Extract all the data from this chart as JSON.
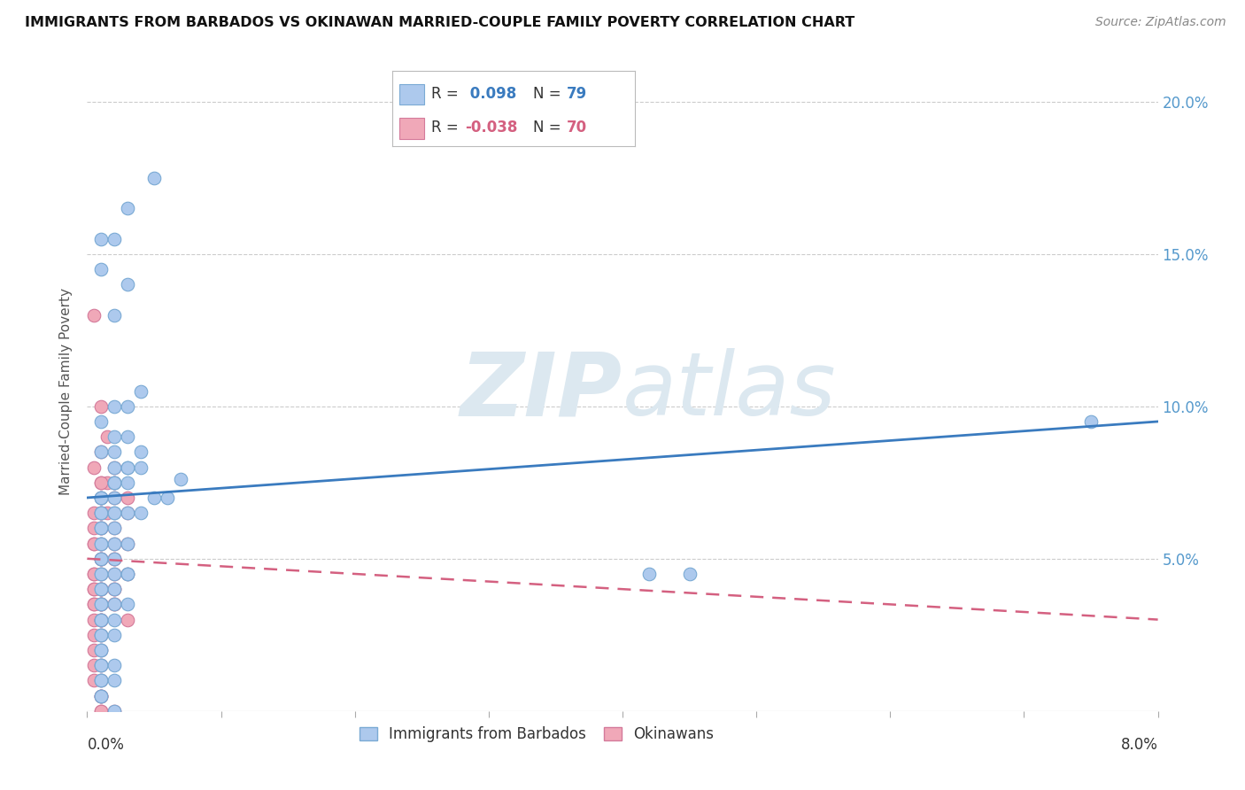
{
  "title": "IMMIGRANTS FROM BARBADOS VS OKINAWAN MARRIED-COUPLE FAMILY POVERTY CORRELATION CHART",
  "source": "Source: ZipAtlas.com",
  "ylabel": "Married-Couple Family Poverty",
  "y_tick_labels": [
    "",
    "5.0%",
    "10.0%",
    "15.0%",
    "20.0%"
  ],
  "y_tick_values": [
    0.0,
    0.05,
    0.1,
    0.15,
    0.2
  ],
  "x_range": [
    0.0,
    0.08
  ],
  "y_range": [
    0.0,
    0.21
  ],
  "series1_label": "Immigrants from Barbados",
  "series2_label": "Okinawans",
  "series1_color": "#adc9ed",
  "series1_edge": "#7aaad4",
  "series2_color": "#f0a8b8",
  "series2_edge": "#d47a9a",
  "trendline1_color": "#3a7bbf",
  "trendline2_color": "#d46080",
  "watermark_zip": "ZIP",
  "watermark_atlas": "atlas",
  "watermark_color": "#dce8f0",
  "background_color": "#ffffff",
  "legend_r1": " 0.098",
  "legend_n1": "79",
  "legend_r2": "-0.038",
  "legend_n2": "70",
  "legend_color1": "#3a7bbf",
  "legend_color2": "#d46080",
  "legend_text_color": "#333333",
  "series1_x": [
    0.005,
    0.003,
    0.001,
    0.002,
    0.001,
    0.003,
    0.002,
    0.004,
    0.002,
    0.001,
    0.002,
    0.003,
    0.001,
    0.002,
    0.003,
    0.002,
    0.003,
    0.002,
    0.001,
    0.002,
    0.001,
    0.002,
    0.001,
    0.003,
    0.002,
    0.001,
    0.002,
    0.003,
    0.001,
    0.002,
    0.001,
    0.002,
    0.001,
    0.003,
    0.002,
    0.001,
    0.002,
    0.001,
    0.003,
    0.002,
    0.001,
    0.002,
    0.001,
    0.001,
    0.002,
    0.001,
    0.002,
    0.001,
    0.001,
    0.002,
    0.001,
    0.001,
    0.001,
    0.002,
    0.001,
    0.001,
    0.001,
    0.001,
    0.001,
    0.001,
    0.001,
    0.001,
    0.001,
    0.001,
    0.001,
    0.002,
    0.002,
    0.003,
    0.004,
    0.003,
    0.004,
    0.005,
    0.006,
    0.004,
    0.003,
    0.045,
    0.042,
    0.007,
    0.075
  ],
  "series1_y": [
    0.175,
    0.165,
    0.155,
    0.155,
    0.145,
    0.14,
    0.13,
    0.105,
    0.1,
    0.095,
    0.09,
    0.09,
    0.085,
    0.085,
    0.08,
    0.075,
    0.08,
    0.075,
    0.07,
    0.07,
    0.065,
    0.065,
    0.06,
    0.065,
    0.06,
    0.055,
    0.055,
    0.055,
    0.05,
    0.05,
    0.045,
    0.045,
    0.04,
    0.045,
    0.04,
    0.035,
    0.035,
    0.03,
    0.035,
    0.03,
    0.025,
    0.025,
    0.02,
    0.015,
    0.015,
    0.01,
    0.01,
    0.005,
    0.005,
    0.0,
    0.07,
    0.07,
    0.065,
    0.065,
    0.06,
    0.055,
    0.05,
    0.045,
    0.04,
    0.035,
    0.03,
    0.025,
    0.02,
    0.015,
    0.01,
    0.08,
    0.075,
    0.1,
    0.085,
    0.075,
    0.08,
    0.07,
    0.07,
    0.065,
    0.045,
    0.045,
    0.045,
    0.076,
    0.095
  ],
  "series2_x": [
    0.0005,
    0.001,
    0.0015,
    0.001,
    0.0005,
    0.001,
    0.0015,
    0.002,
    0.0005,
    0.001,
    0.0015,
    0.001,
    0.0005,
    0.001,
    0.001,
    0.002,
    0.0005,
    0.001,
    0.0005,
    0.001,
    0.0005,
    0.001,
    0.0005,
    0.001,
    0.0005,
    0.001,
    0.0005,
    0.001,
    0.0005,
    0.001,
    0.0005,
    0.001,
    0.001,
    0.001,
    0.001,
    0.001,
    0.002,
    0.001,
    0.002,
    0.001,
    0.002,
    0.001,
    0.002,
    0.001,
    0.002,
    0.001,
    0.002,
    0.001,
    0.001,
    0.001,
    0.0005,
    0.001,
    0.0005,
    0.001,
    0.0005,
    0.001,
    0.0005,
    0.001,
    0.0005,
    0.001,
    0.002,
    0.003,
    0.003,
    0.002,
    0.003,
    0.002,
    0.003,
    0.002,
    0.002,
    0.003
  ],
  "series2_y": [
    0.13,
    0.1,
    0.09,
    0.085,
    0.08,
    0.075,
    0.075,
    0.07,
    0.065,
    0.065,
    0.065,
    0.06,
    0.055,
    0.055,
    0.05,
    0.05,
    0.045,
    0.045,
    0.04,
    0.04,
    0.035,
    0.035,
    0.03,
    0.03,
    0.025,
    0.025,
    0.02,
    0.02,
    0.015,
    0.015,
    0.01,
    0.01,
    0.005,
    0.005,
    0.005,
    0.0,
    0.0,
    0.0,
    0.055,
    0.05,
    0.045,
    0.04,
    0.04,
    0.035,
    0.035,
    0.03,
    0.08,
    0.075,
    0.07,
    0.065,
    0.06,
    0.06,
    0.055,
    0.05,
    0.045,
    0.04,
    0.04,
    0.035,
    0.035,
    0.03,
    0.075,
    0.07,
    0.065,
    0.06,
    0.055,
    0.05,
    0.045,
    0.04,
    0.035,
    0.03
  ]
}
